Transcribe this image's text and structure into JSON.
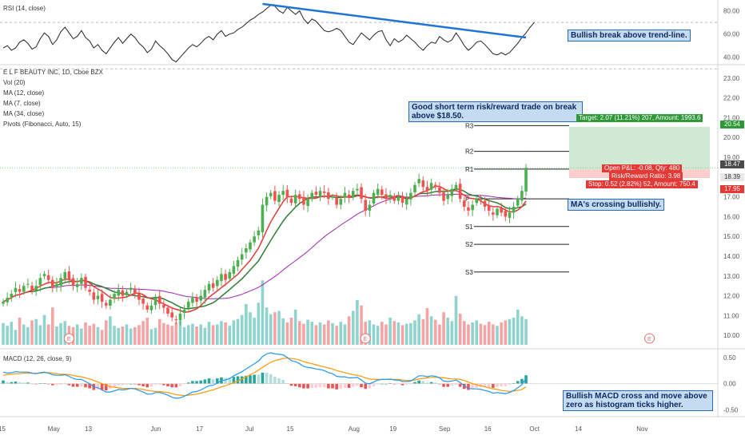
{
  "rsi": {
    "label": "RSI (14, close)",
    "ticks": [
      {
        "v": 80,
        "t": "80.00"
      },
      {
        "v": 60,
        "t": "60.00"
      },
      {
        "v": 40,
        "t": "40.00"
      }
    ],
    "ylim": [
      35,
      88
    ],
    "series": [
      48,
      50,
      46,
      48,
      53,
      55,
      52,
      47,
      49,
      56,
      61,
      58,
      51,
      55,
      62,
      66,
      61,
      56,
      58,
      63,
      57,
      54,
      48,
      51,
      46,
      43,
      48,
      53,
      57,
      52,
      56,
      60,
      57,
      52,
      49,
      44,
      47,
      54,
      50,
      47,
      43,
      38,
      36,
      40,
      44,
      48,
      51,
      49,
      52,
      56,
      58,
      55,
      60,
      63,
      58,
      60,
      61,
      64,
      66,
      69,
      72,
      74,
      77,
      79,
      82,
      85,
      84,
      80,
      78,
      83,
      80,
      77,
      80,
      73,
      69,
      73,
      71,
      67,
      63,
      62,
      63,
      65,
      63,
      58,
      53,
      51,
      56,
      61,
      58,
      55,
      59,
      62,
      63,
      55,
      50,
      56,
      53,
      55,
      59,
      56,
      53,
      49,
      46,
      50,
      53,
      52,
      58,
      55,
      53,
      55,
      61,
      56,
      50,
      46,
      49,
      53,
      54,
      51,
      47,
      43,
      42,
      44,
      42,
      44,
      48,
      52,
      57,
      61,
      66,
      70
    ],
    "trendline": {
      "from_index": 63,
      "to_index": 127,
      "from_value": 86,
      "to_value": 57
    },
    "trend_color": "#1e74d6",
    "note": "Bullish break above trend-line."
  },
  "main": {
    "title": "E L F BEAUTY INC, 1D, Cboe BZX",
    "indicators": [
      "Vol (20)",
      "MA (12, close)",
      "MA (7, close)",
      "MA (34, close)",
      "Pivots (Fibonacci, Auto, 15)"
    ],
    "ylim": [
      9.4,
      23.6
    ],
    "ticks": [
      "23.00",
      "22.00",
      "21.00",
      "20.00",
      "19.00",
      "18.00",
      "17.00",
      "16.00",
      "15.00",
      "14.00",
      "13.00",
      "12.00",
      "11.00",
      "10.00"
    ],
    "current_price": 18.47,
    "up_color": "#4caf50",
    "down_color": "#ef5350",
    "ma_fast_color": "#e53935",
    "ma_mid_color": "#2e7d32",
    "ma_slow_color": "#9c27b0",
    "pivots": [
      {
        "name": "R3",
        "value": 20.6
      },
      {
        "name": "R2",
        "value": 19.3
      },
      {
        "name": "R1",
        "value": 18.4
      },
      {
        "name": "P",
        "value": 16.9
      },
      {
        "name": "S1",
        "value": 15.5
      },
      {
        "name": "S2",
        "value": 14.6
      },
      {
        "name": "S3",
        "value": 13.2
      }
    ],
    "trade": {
      "target_label": "Target: 2.07 (11.21%) 207, Amount: 1993.6",
      "pnl_label": "Open P&L: -0.08, Qty: 480",
      "rr_label": "Risk/Reward Ratio: 3.98",
      "stop_label": "Stop: 0.52 (2.82%) 52, Amount: 750.4",
      "target_price": "20.54",
      "current_price": "18.47",
      "entry_price": "18.39",
      "stop_price": "17.95",
      "target_value": 20.54,
      "entry_value": 18.39,
      "stop_value": 17.95
    },
    "notes": {
      "trade": "Good short term risk/reward trade on break above $18.50.",
      "ma": "MA's crossing bullishly."
    },
    "earnings_marker": "E"
  },
  "macd": {
    "label": "MACD (12, 26, close, 9)",
    "ticks": [
      {
        "v": 0.5,
        "t": "0.50"
      },
      {
        "v": 0,
        "t": "0.00"
      },
      {
        "v": -0.5,
        "t": "-0.50"
      }
    ],
    "ylim": [
      -0.6,
      0.62
    ],
    "note": "Bullish MACD cross and move above zero as histogram ticks higher.",
    "macd_color": "#2196f3",
    "signal_color": "#ff9800"
  },
  "xaxis": {
    "labels": [
      {
        "i": 0,
        "t": "15"
      },
      {
        "i": 12,
        "t": "May"
      },
      {
        "i": 21,
        "t": "13"
      },
      {
        "i": 37,
        "t": "Jun"
      },
      {
        "i": 48,
        "t": "17"
      },
      {
        "i": 60,
        "t": "Jul"
      },
      {
        "i": 70,
        "t": "15"
      },
      {
        "i": 85,
        "t": "Aug"
      },
      {
        "i": 95,
        "t": "19"
      },
      {
        "i": 107,
        "t": "Sep"
      },
      {
        "i": 118,
        "t": "16"
      },
      {
        "i": 129,
        "t": "Oct"
      },
      {
        "i": 140,
        "t": "14"
      },
      {
        "i": 155,
        "t": "Nov"
      }
    ]
  },
  "chart_data": {
    "type": "candlestick",
    "title": "E L F BEAUTY INC, 1D, Cboe BZX",
    "closes": [
      11.7,
      11.9,
      12.1,
      12.4,
      12.2,
      12.5,
      12.6,
      12.3,
      12.5,
      12.9,
      13.1,
      12.8,
      12.4,
      12.6,
      12.9,
      13.2,
      12.8,
      12.5,
      12.6,
      12.9,
      12.4,
      12.2,
      11.8,
      12.0,
      11.7,
      11.5,
      11.8,
      12.1,
      12.3,
      12.0,
      12.2,
      12.4,
      12.1,
      11.8,
      11.6,
      11.3,
      11.5,
      11.9,
      11.6,
      11.4,
      11.1,
      10.9,
      10.8,
      11.1,
      11.3,
      11.7,
      11.9,
      11.7,
      12.0,
      12.3,
      12.6,
      12.4,
      12.8,
      13.1,
      12.8,
      13.2,
      13.5,
      13.8,
      14.1,
      14.4,
      14.7,
      15.0,
      15.3,
      16.6,
      17.0,
      17.2,
      16.8,
      17.1,
      17.3,
      17.0,
      16.7,
      17.1,
      16.9,
      16.6,
      16.9,
      17.2,
      17.1,
      17.3,
      17.2,
      16.9,
      17.0,
      16.6,
      16.9,
      17.2,
      17.0,
      17.3,
      17.4,
      16.9,
      16.3,
      16.6,
      17.2,
      17.4,
      17.1,
      16.9,
      17.1,
      16.8,
      17.0,
      16.7,
      16.9,
      17.2,
      17.6,
      17.9,
      17.5,
      17.3,
      17.7,
      17.5,
      17.2,
      16.8,
      17.1,
      17.4,
      17.6,
      16.9,
      16.5,
      16.3,
      16.6,
      16.9,
      16.8,
      16.5,
      16.3,
      16.1,
      16.4,
      16.2,
      16.0,
      16.2,
      16.5,
      16.9,
      17.3,
      18.47
    ],
    "volume": [
      0.32,
      0.28,
      0.34,
      0.22,
      0.4,
      0.3,
      0.26,
      0.36,
      0.38,
      0.29,
      0.44,
      0.3,
      0.55,
      0.27,
      0.32,
      0.35,
      0.28,
      0.26,
      0.3,
      0.24,
      0.33,
      0.28,
      0.31,
      0.26,
      0.22,
      0.36,
      0.42,
      0.28,
      0.25,
      0.27,
      0.3,
      0.24,
      0.26,
      0.29,
      0.35,
      0.4,
      0.23,
      0.25,
      0.38,
      0.32,
      0.3,
      0.28,
      0.33,
      0.36,
      0.26,
      0.29,
      0.31,
      0.27,
      0.3,
      0.25,
      0.34,
      0.29,
      0.3,
      0.35,
      0.33,
      0.28,
      0.36,
      0.38,
      0.44,
      0.6,
      0.48,
      0.4,
      0.62,
      0.95,
      0.55,
      0.45,
      0.48,
      0.5,
      0.39,
      0.33,
      0.4,
      0.52,
      0.35,
      0.31,
      0.37,
      0.34,
      0.29,
      0.33,
      0.3,
      0.36,
      0.32,
      0.28,
      0.34,
      0.3,
      0.42,
      0.5,
      0.66,
      0.58,
      0.34,
      0.36,
      0.3,
      0.28,
      0.34,
      0.3,
      0.4,
      0.35,
      0.33,
      0.29,
      0.31,
      0.32,
      0.36,
      0.45,
      0.38,
      0.54,
      0.42,
      0.37,
      0.3,
      0.48,
      0.4,
      0.35,
      0.72,
      0.46,
      0.35,
      0.3,
      0.33,
      0.36,
      0.31,
      0.29,
      0.34,
      0.3,
      0.28,
      0.33,
      0.36,
      0.38,
      0.4,
      0.52,
      0.42,
      0.38
    ],
    "macd_line": [
      0.22,
      0.2,
      0.21,
      0.23,
      0.22,
      0.22,
      0.22,
      0.2,
      0.19,
      0.21,
      0.22,
      0.2,
      0.17,
      0.16,
      0.16,
      0.17,
      0.14,
      0.1,
      0.08,
      0.08,
      0.04,
      0.0,
      -0.06,
      -0.08,
      -0.12,
      -0.16,
      -0.16,
      -0.14,
      -0.11,
      -0.12,
      -0.11,
      -0.09,
      -0.1,
      -0.13,
      -0.16,
      -0.2,
      -0.2,
      -0.17,
      -0.17,
      -0.19,
      -0.22,
      -0.26,
      -0.28,
      -0.27,
      -0.24,
      -0.2,
      -0.16,
      -0.15,
      -0.12,
      -0.08,
      -0.04,
      -0.03,
      0.01,
      0.06,
      0.07,
      0.1,
      0.15,
      0.19,
      0.23,
      0.28,
      0.33,
      0.38,
      0.43,
      0.52,
      0.57,
      0.59,
      0.57,
      0.56,
      0.55,
      0.5,
      0.44,
      0.42,
      0.38,
      0.33,
      0.31,
      0.3,
      0.28,
      0.27,
      0.25,
      0.21,
      0.19,
      0.14,
      0.13,
      0.13,
      0.11,
      0.11,
      0.12,
      0.07,
      0.01,
      0.0,
      0.03,
      0.07,
      0.08,
      0.08,
      0.09,
      0.07,
      0.07,
      0.04,
      0.04,
      0.05,
      0.1,
      0.15,
      0.15,
      0.13,
      0.15,
      0.14,
      0.11,
      0.05,
      0.04,
      0.05,
      0.07,
      0.02,
      -0.04,
      -0.09,
      -0.1,
      -0.1,
      -0.11,
      -0.13,
      -0.15,
      -0.18,
      -0.17,
      -0.18,
      -0.19,
      -0.17,
      -0.13,
      -0.08,
      -0.02,
      0.1
    ],
    "signal_line": [
      0.16,
      0.17,
      0.18,
      0.19,
      0.19,
      0.2,
      0.2,
      0.2,
      0.2,
      0.2,
      0.21,
      0.21,
      0.2,
      0.19,
      0.18,
      0.18,
      0.17,
      0.16,
      0.14,
      0.13,
      0.11,
      0.09,
      0.06,
      0.03,
      0.0,
      -0.03,
      -0.06,
      -0.07,
      -0.08,
      -0.09,
      -0.09,
      -0.09,
      -0.09,
      -0.1,
      -0.11,
      -0.13,
      -0.14,
      -0.15,
      -0.15,
      -0.16,
      -0.17,
      -0.19,
      -0.21,
      -0.22,
      -0.23,
      -0.22,
      -0.21,
      -0.2,
      -0.18,
      -0.16,
      -0.14,
      -0.12,
      -0.09,
      -0.06,
      -0.04,
      -0.01,
      0.02,
      0.05,
      0.09,
      0.13,
      0.17,
      0.21,
      0.26,
      0.31,
      0.36,
      0.41,
      0.44,
      0.46,
      0.48,
      0.49,
      0.48,
      0.47,
      0.45,
      0.42,
      0.4,
      0.38,
      0.36,
      0.34,
      0.32,
      0.3,
      0.28,
      0.25,
      0.23,
      0.21,
      0.19,
      0.17,
      0.16,
      0.14,
      0.11,
      0.09,
      0.08,
      0.08,
      0.08,
      0.08,
      0.08,
      0.08,
      0.08,
      0.07,
      0.06,
      0.06,
      0.07,
      0.09,
      0.1,
      0.11,
      0.12,
      0.12,
      0.12,
      0.11,
      0.1,
      0.09,
      0.09,
      0.08,
      0.06,
      0.03,
      0.0,
      -0.02,
      -0.04,
      -0.06,
      -0.08,
      -0.1,
      -0.11,
      -0.13,
      -0.14,
      -0.15,
      -0.14,
      -0.13,
      -0.11,
      -0.06
    ],
    "rsi_trendline": "bullish break",
    "earnings_events": [
      16,
      88,
      157
    ]
  }
}
